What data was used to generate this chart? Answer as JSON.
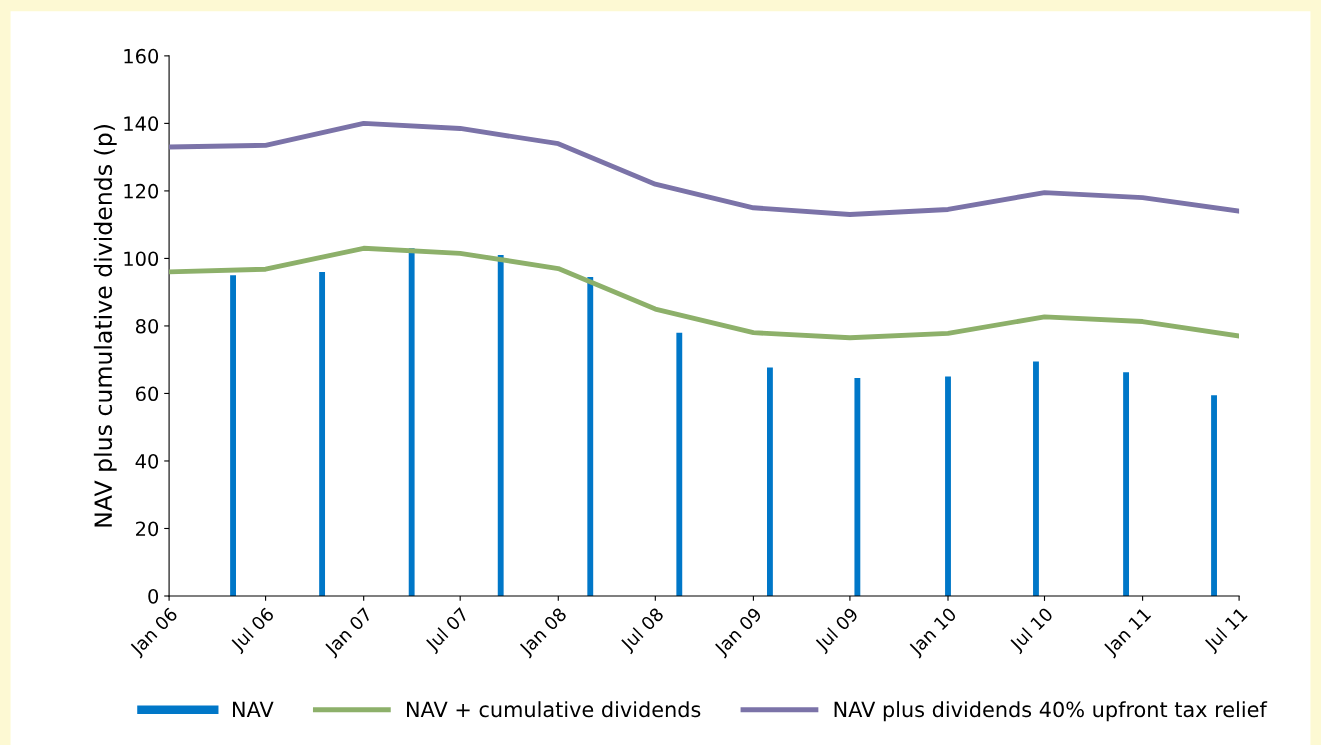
{
  "chart_data": {
    "type": "line",
    "ylabel": "NAV plus cumulative dividends (p)",
    "xlim": [
      "2006-01",
      "2011-07"
    ],
    "xticks": [
      {
        "value": "2006-01",
        "label": "Jan 06"
      },
      {
        "value": "2006-07",
        "label": "Jul 06"
      },
      {
        "value": "2007-01",
        "label": "Jan 07"
      },
      {
        "value": "2007-07",
        "label": "Jul 07"
      },
      {
        "value": "2008-01",
        "label": "Jan 08"
      },
      {
        "value": "2008-07",
        "label": "Jul 08"
      },
      {
        "value": "2009-01",
        "label": "Jan 09"
      },
      {
        "value": "2009-07",
        "label": "Jul 09"
      },
      {
        "value": "2010-01",
        "label": "Jan 10"
      },
      {
        "value": "2010-07",
        "label": "Jul 10"
      },
      {
        "value": "2011-01",
        "label": "Jan 11"
      },
      {
        "value": "2011-07",
        "label": "Jul 11"
      }
    ],
    "ylim": [
      0,
      160
    ],
    "yticks": [
      0,
      20,
      40,
      60,
      80,
      100,
      120,
      140,
      160
    ],
    "legend": "bottom",
    "series": [
      {
        "name": "NAV",
        "type": "bar",
        "color": "#0077c8",
        "x": [
          "2006-05",
          "2006-10-15",
          "2007-04",
          "2007-09-15",
          "2008-03",
          "2008-08-15",
          "2009-02",
          "2009-07-15",
          "2010-01",
          "2010-06-15",
          "2010-12",
          "2011-05-15"
        ],
        "values": [
          95,
          96,
          103,
          101,
          94.5,
          78,
          67.7,
          64.6,
          65,
          69.5,
          66.3,
          59.5
        ]
      },
      {
        "name": "NAV + cumulative dividends",
        "color": "#8db06a",
        "x": [
          "2006-01",
          "2006-07",
          "2007-01",
          "2007-07",
          "2008-01",
          "2008-07",
          "2009-01",
          "2009-07",
          "2010-01",
          "2010-07",
          "2011-01",
          "2011-07"
        ],
        "values": [
          96,
          96.8,
          103,
          101.5,
          97,
          85,
          78,
          76.5,
          77.8,
          82.7,
          81.3,
          77
        ]
      },
      {
        "name": "NAV plus dividends 40% upfront tax relief",
        "color": "#7b73a8",
        "x": [
          "2006-01",
          "2006-07",
          "2007-01",
          "2007-07",
          "2008-01",
          "2008-07",
          "2009-01",
          "2009-07",
          "2010-01",
          "2010-07",
          "2011-01",
          "2011-07"
        ],
        "values": [
          133,
          133.5,
          140,
          138.5,
          134,
          122,
          115,
          113,
          114.5,
          119.5,
          118,
          114
        ]
      }
    ]
  }
}
